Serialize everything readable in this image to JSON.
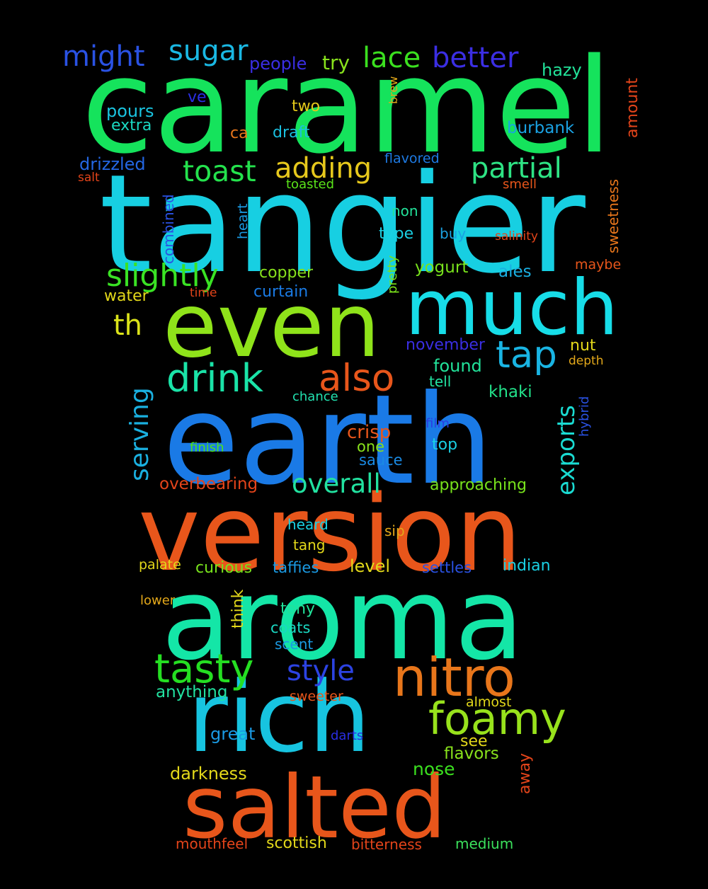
{
  "background_color": "#000000",
  "words": [
    {
      "text": "caramel",
      "color": "#15e35c"
    },
    {
      "text": "tangier",
      "color": "#17cfe2"
    },
    {
      "text": "earth",
      "color": "#1a7ae6"
    },
    {
      "text": "version",
      "color": "#e8561b"
    },
    {
      "text": "aroma",
      "color": "#14e6a7"
    },
    {
      "text": "even",
      "color": "#8fe31a"
    },
    {
      "text": "much",
      "color": "#17dde8"
    },
    {
      "text": "rich",
      "color": "#17c4e0"
    },
    {
      "text": "salted",
      "color": "#e8561b"
    },
    {
      "text": "nitro",
      "color": "#e8761b"
    },
    {
      "text": "foamy",
      "color": "#98e21c"
    },
    {
      "text": "tasty",
      "color": "#25df22"
    },
    {
      "text": "drink",
      "color": "#1ae3a8"
    },
    {
      "text": "also",
      "color": "#e8561b"
    },
    {
      "text": "tap",
      "color": "#19b4e3"
    },
    {
      "text": "slightly",
      "color": "#3ae324"
    },
    {
      "text": "toast",
      "color": "#24e24d"
    },
    {
      "text": "adding",
      "color": "#e6c81c"
    },
    {
      "text": "partial",
      "color": "#2ee384"
    },
    {
      "text": "might",
      "color": "#2a52e3"
    },
    {
      "text": "sugar",
      "color": "#1ab8e3"
    },
    {
      "text": "lace",
      "color": "#3be01f"
    },
    {
      "text": "better",
      "color": "#3b2ee3"
    },
    {
      "text": "style",
      "color": "#2c43e3"
    },
    {
      "text": "overall",
      "color": "#22e2a0"
    },
    {
      "text": "serving",
      "color": "#1ab0e0"
    },
    {
      "text": "exports",
      "color": "#1adbd2"
    },
    {
      "text": "th",
      "color": "#dbe31a"
    },
    {
      "text": "crisp",
      "color": "#e8561b"
    },
    {
      "text": "people",
      "color": "#3a2ee3"
    },
    {
      "text": "try",
      "color": "#88e21c"
    },
    {
      "text": "hazy",
      "color": "#22e29a"
    },
    {
      "text": "pours",
      "color": "#1ac4e0"
    },
    {
      "text": "extra",
      "color": "#1ad8c2"
    },
    {
      "text": "ve",
      "color": "#2a2ee3"
    },
    {
      "text": "two",
      "color": "#e3c91a"
    },
    {
      "text": "ca",
      "color": "#e8761b"
    },
    {
      "text": "draft",
      "color": "#1ac0e0"
    },
    {
      "text": "burbank",
      "color": "#1aa2e3"
    },
    {
      "text": "drizzled",
      "color": "#2467e3"
    },
    {
      "text": "flavored",
      "color": "#1e7ae3"
    },
    {
      "text": "salt",
      "color": "#e3441a"
    },
    {
      "text": "toasted",
      "color": "#5ae31a"
    },
    {
      "text": "smell",
      "color": "#e8561b"
    },
    {
      "text": "non",
      "color": "#22e29a"
    },
    {
      "text": "type",
      "color": "#1ad0e3"
    },
    {
      "text": "buy",
      "color": "#1aa2e3"
    },
    {
      "text": "salinity",
      "color": "#e3441a"
    },
    {
      "text": "copper",
      "color": "#88e21c"
    },
    {
      "text": "yogurt",
      "color": "#78e21c"
    },
    {
      "text": "ales",
      "color": "#1ab0e3"
    },
    {
      "text": "maybe",
      "color": "#e8561b"
    },
    {
      "text": "water",
      "color": "#e3d81a"
    },
    {
      "text": "time",
      "color": "#e3441a"
    },
    {
      "text": "curtain",
      "color": "#1a7ae3"
    },
    {
      "text": "november",
      "color": "#3a2ee3"
    },
    {
      "text": "nut",
      "color": "#e3d81a"
    },
    {
      "text": "depth",
      "color": "#e3a81a"
    },
    {
      "text": "found",
      "color": "#22e29a"
    },
    {
      "text": "tell",
      "color": "#22e2a0"
    },
    {
      "text": "khaki",
      "color": "#22e28a"
    },
    {
      "text": "chance",
      "color": "#22e2b0"
    },
    {
      "text": "film",
      "color": "#2a3ee3"
    },
    {
      "text": "finish",
      "color": "#4ce21c"
    },
    {
      "text": "one",
      "color": "#88e21c"
    },
    {
      "text": "top",
      "color": "#1ad0e3"
    },
    {
      "text": "sauce",
      "color": "#1a8ae3"
    },
    {
      "text": "overbearing",
      "color": "#e3441a"
    },
    {
      "text": "approaching",
      "color": "#78e21c"
    },
    {
      "text": "heard",
      "color": "#1ad0e3"
    },
    {
      "text": "sip",
      "color": "#e3a81a"
    },
    {
      "text": "tang",
      "color": "#e3d81a"
    },
    {
      "text": "palate",
      "color": "#e3d81a"
    },
    {
      "text": "curious",
      "color": "#78e21c"
    },
    {
      "text": "taffies",
      "color": "#1a9ae3"
    },
    {
      "text": "level",
      "color": "#e3d81a"
    },
    {
      "text": "settles",
      "color": "#2a52e3"
    },
    {
      "text": "indian",
      "color": "#1ad0e3"
    },
    {
      "text": "lower",
      "color": "#e3a81a"
    },
    {
      "text": "tony",
      "color": "#22e29a"
    },
    {
      "text": "coats",
      "color": "#1ad8c2"
    },
    {
      "text": "scent",
      "color": "#1a9ae3"
    },
    {
      "text": "anything",
      "color": "#22e2a0"
    },
    {
      "text": "sweeter",
      "color": "#e8561b"
    },
    {
      "text": "almost",
      "color": "#e3d81a"
    },
    {
      "text": "great",
      "color": "#1a9ae3"
    },
    {
      "text": "darts",
      "color": "#2a2ee3"
    },
    {
      "text": "see",
      "color": "#e3d81a"
    },
    {
      "text": "flavors",
      "color": "#88e21c"
    },
    {
      "text": "darkness",
      "color": "#e3d81a"
    },
    {
      "text": "nose",
      "color": "#3be01f"
    },
    {
      "text": "mouthfeel",
      "color": "#e3441a"
    },
    {
      "text": "scottish",
      "color": "#e3d81a"
    },
    {
      "text": "bitterness",
      "color": "#e3441a"
    },
    {
      "text": "medium",
      "color": "#3be05c"
    },
    {
      "text": "think",
      "color": "#e3d81a"
    },
    {
      "text": "combined",
      "color": "#2a52e3"
    },
    {
      "text": "heart",
      "color": "#1a9ae3"
    },
    {
      "text": "pretty",
      "color": "#7ae21c"
    },
    {
      "text": "brew",
      "color": "#e3a81a"
    },
    {
      "text": "amount",
      "color": "#e3441a"
    },
    {
      "text": "sweetness",
      "color": "#e8761b"
    },
    {
      "text": "hybrid",
      "color": "#2a52e3"
    },
    {
      "text": "away",
      "color": "#e3441a"
    }
  ]
}
